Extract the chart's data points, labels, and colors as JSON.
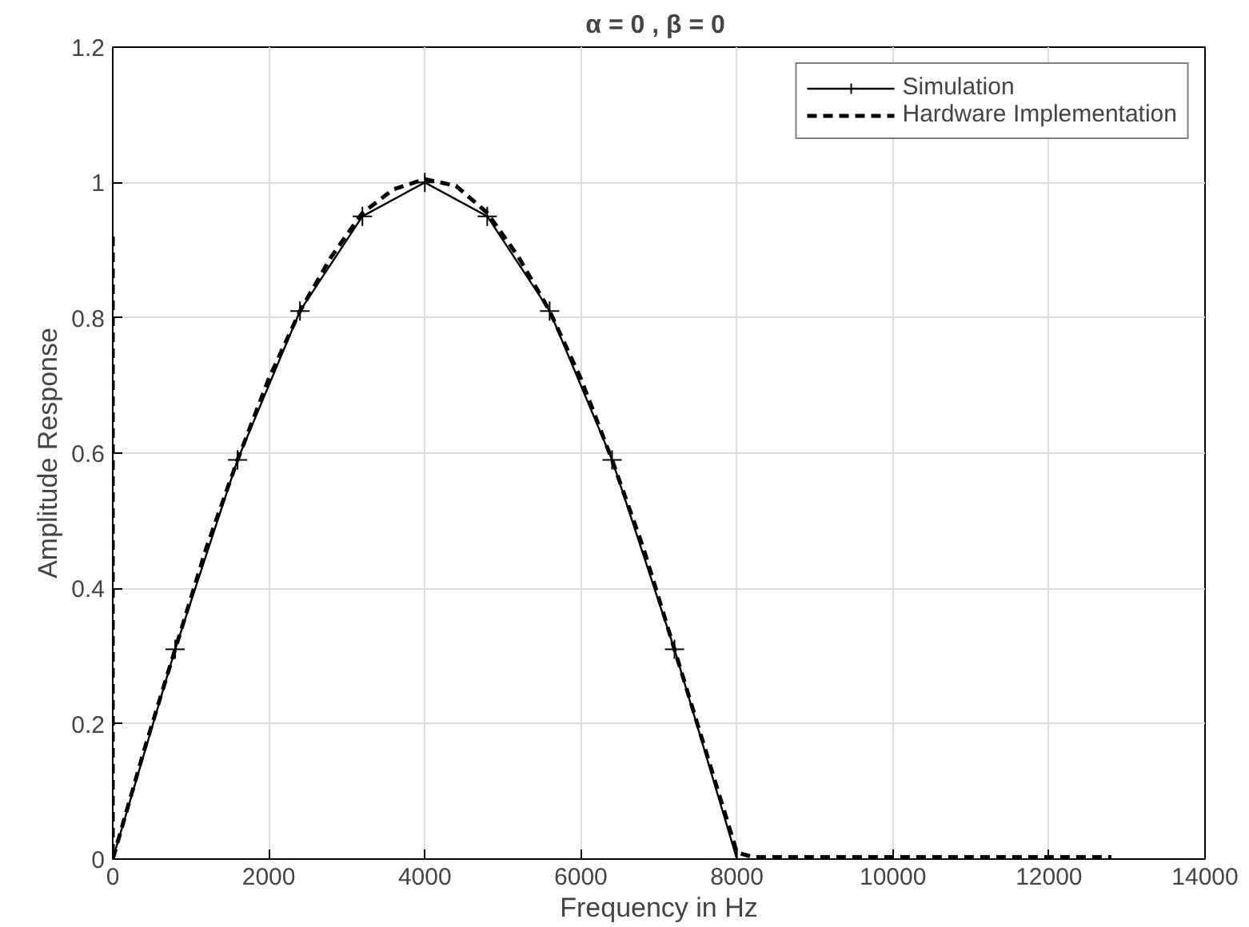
{
  "chart_data": {
    "type": "line",
    "title": "α = 0 ,  β = 0",
    "xlabel": "Frequency in Hz",
    "ylabel": "Amplitude Response",
    "xlim": [
      0,
      14000
    ],
    "ylim": [
      0,
      1.2
    ],
    "xticks": [
      0,
      2000,
      4000,
      6000,
      8000,
      10000,
      12000,
      14000
    ],
    "yticks": [
      0,
      0.2,
      0.4,
      0.6,
      0.8,
      1,
      1.2
    ],
    "grid": true,
    "legend": "top right",
    "series": [
      {
        "name": "Simulation",
        "color": "#000000",
        "marker": "cross",
        "line_style": "solid",
        "x": [
          0,
          800,
          1600,
          2400,
          3200,
          4000,
          4800,
          5600,
          6400,
          7200,
          8000
        ],
        "values": [
          0,
          0.31,
          0.59,
          0.81,
          0.95,
          1.0,
          0.95,
          0.81,
          0.59,
          0.31,
          0
        ]
      },
      {
        "name": "Hardware Implementation",
        "color": "#000000",
        "marker": "none",
        "line_style": "dashed",
        "x": [
          0,
          0,
          400,
          800,
          1200,
          1600,
          2000,
          2400,
          2800,
          3200,
          3600,
          4000,
          4400,
          4800,
          5200,
          5600,
          6000,
          6400,
          6800,
          7200,
          7600,
          8000,
          8200,
          9000,
          10000,
          11000,
          12000,
          12800
        ],
        "values": [
          0.92,
          0,
          0.16,
          0.31,
          0.46,
          0.59,
          0.71,
          0.81,
          0.89,
          0.955,
          0.99,
          1.005,
          0.995,
          0.955,
          0.89,
          0.81,
          0.71,
          0.59,
          0.46,
          0.31,
          0.16,
          0.01,
          0.003,
          0.003,
          0.003,
          0.003,
          0.003,
          0.003
        ]
      }
    ]
  }
}
